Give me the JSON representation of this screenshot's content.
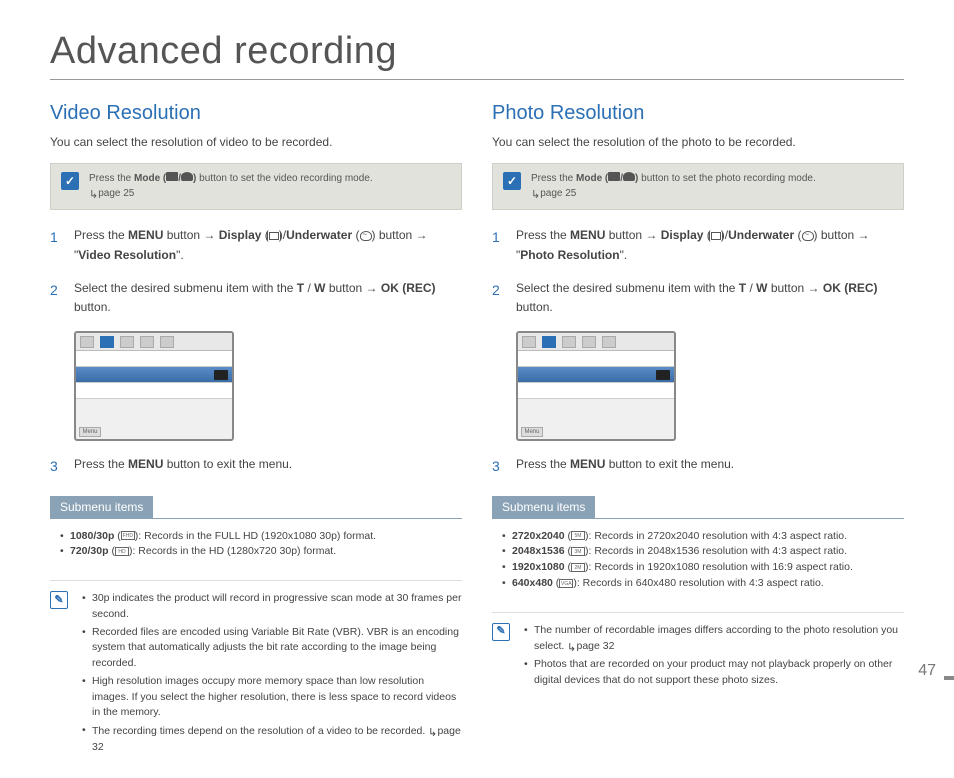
{
  "page": {
    "title": "Advanced recording",
    "number": "47"
  },
  "left": {
    "heading": "Video Resolution",
    "intro": "You can select the resolution of video to be recorded.",
    "tip_pre": "Press the ",
    "tip_mode": "Mode",
    "tip_post": " button to set the video recording mode.",
    "tip_page": "page 25",
    "step1_a": "Press the ",
    "step1_menu": "MENU",
    "step1_b": " button ",
    "step1_display": "Display",
    "step1_uw": "Underwater",
    "step1_c": " button ",
    "step1_target": "Video Resolution",
    "step2_a": "Select the desired submenu item with the ",
    "step2_tw": "T",
    "step2_w": "W",
    "step2_b": " button ",
    "step2_ok": "OK (REC)",
    "step2_c": " button.",
    "step3_a": "Press the ",
    "step3_menu": "MENU",
    "step3_b": " button to exit the menu.",
    "submenu_header": "Submenu items",
    "sub1_label": "1080/30p",
    "sub1_text": ": Records in the FULL HD (1920x1080 30p) format.",
    "sub2_label": "720/30p",
    "sub2_text": ": Records in the HD (1280x720 30p) format.",
    "note1": "30p indicates the product will record in progressive scan mode at 30 frames per second.",
    "note2": "Recorded files are encoded using Variable Bit Rate (VBR). VBR is an encoding system that automatically adjusts the bit rate according to the image being recorded.",
    "note3": "High resolution images occupy more memory space than low resolution images. If you select the higher resolution, there is less space to record videos in the memory.",
    "note4": "The recording times depend on the resolution of a video to be recorded. ",
    "note4_page": "page 32"
  },
  "right": {
    "heading": "Photo Resolution",
    "intro": "You can select the resolution of the photo to be recorded.",
    "tip_pre": "Press the ",
    "tip_mode": "Mode",
    "tip_post": " button to set the photo recording mode.",
    "tip_page": "page 25",
    "step1_a": "Press the ",
    "step1_menu": "MENU",
    "step1_b": " button ",
    "step1_display": "Display",
    "step1_uw": "Underwater",
    "step1_c": " button ",
    "step1_target": "Photo Resolution",
    "step2_a": "Select the desired submenu item with the ",
    "step2_tw": "T",
    "step2_w": "W",
    "step2_b": " button ",
    "step2_ok": "OK (REC)",
    "step2_c": " button.",
    "step3_a": "Press the ",
    "step3_menu": "MENU",
    "step3_b": " button to exit the menu.",
    "submenu_header": "Submenu items",
    "sub1_label": "2720x2040",
    "sub1_text": ": Records in 2720x2040 resolution with 4:3 aspect ratio.",
    "sub2_label": "2048x1536",
    "sub2_text": ": Records in 2048x1536 resolution with 4:3 aspect ratio.",
    "sub3_label": "1920x1080",
    "sub3_text": ": Records in 1920x1080 resolution with 16:9 aspect ratio.",
    "sub4_label": "640x480",
    "sub4_text": ": Records in 640x480 resolution with 4:3 aspect ratio.",
    "note1": "The number of recordable images differs according to the photo resolution you select. ",
    "note1_page": "page 32",
    "note2": "Photos that are recorded on your product may not playback properly on other digital devices that do not support these photo sizes."
  }
}
